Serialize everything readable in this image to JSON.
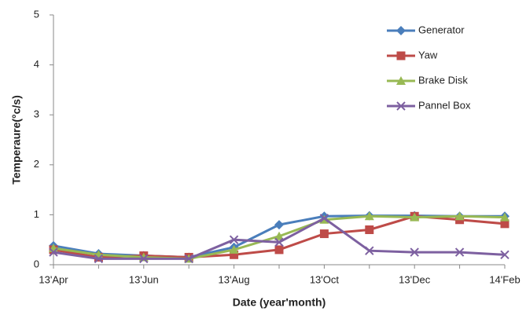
{
  "chart_data": {
    "type": "line",
    "x_label": "Date (year'month)",
    "y_label": "Temperaure(°c/s)",
    "categories": [
      "13'Apr",
      null,
      "13'Jun",
      null,
      "13'Aug",
      null,
      "13'Oct",
      null,
      "13'Dec",
      null,
      "14'Feb"
    ],
    "series": [
      {
        "name": "Generator",
        "color": "#4a7ebb",
        "marker": "diamond",
        "values": [
          0.38,
          0.22,
          0.18,
          0.15,
          0.35,
          0.8,
          0.97,
          0.98,
          0.98,
          0.97,
          0.97
        ]
      },
      {
        "name": "Yaw",
        "color": "#be4b48",
        "marker": "square",
        "values": [
          0.3,
          0.15,
          0.18,
          0.15,
          0.2,
          0.3,
          0.62,
          0.7,
          0.97,
          0.9,
          0.82
        ]
      },
      {
        "name": "Brake Disk",
        "color": "#98b954",
        "marker": "triangle",
        "values": [
          0.33,
          0.2,
          0.15,
          0.12,
          0.3,
          0.57,
          0.9,
          0.97,
          0.95,
          0.97,
          0.95
        ]
      },
      {
        "name": "Pannel Box",
        "color": "#7d60a0",
        "marker": "x",
        "values": [
          0.25,
          0.12,
          0.12,
          0.12,
          0.5,
          0.45,
          0.93,
          0.28,
          0.25,
          0.25,
          0.2
        ]
      }
    ],
    "ylim": [
      0,
      5
    ],
    "yticks": [
      0,
      1,
      2,
      3,
      4,
      5
    ],
    "grid": false,
    "legend": "top-right"
  }
}
